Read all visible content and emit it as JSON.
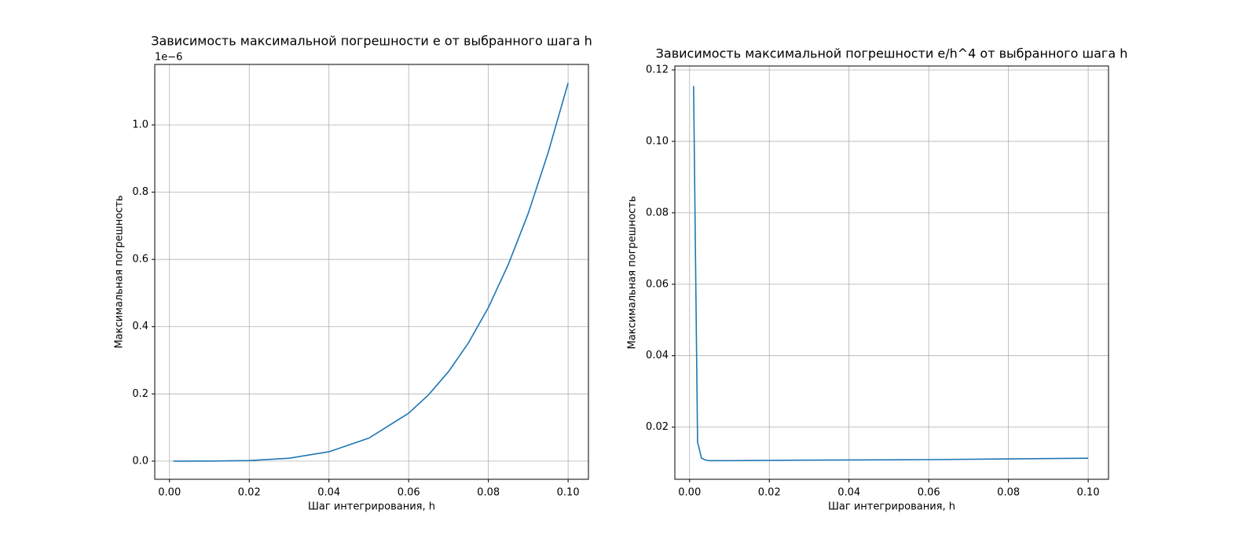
{
  "chart_data": [
    {
      "type": "line",
      "title": "Зависимость максимальной погрешности e от выбранного шага h",
      "xlabel": "Шаг интегрирования, h",
      "ylabel": "Максимальная погрешность",
      "offset_text": "1e−6",
      "x": [
        0.001,
        0.01,
        0.02,
        0.03,
        0.04,
        0.05,
        0.06,
        0.065,
        0.07,
        0.075,
        0.08,
        0.085,
        0.09,
        0.095,
        0.1
      ],
      "values": [
        0.0,
        0.0001,
        0.0017,
        0.0087,
        0.0279,
        0.0684,
        0.1426,
        0.1974,
        0.2663,
        0.352,
        0.457,
        0.585,
        0.737,
        0.918,
        1.125
      ],
      "color": "#1f77b4",
      "xlim": [
        -0.0037,
        0.1051
      ],
      "ylim": [
        -0.054,
        1.18
      ],
      "xticks": [
        {
          "value": 0,
          "label": "0.00"
        },
        0.02,
        0.04,
        0.06,
        0.08,
        {
          "value": 0.1,
          "label": "0.10"
        }
      ],
      "yticks": [
        {
          "value": 0,
          "label": "0.0"
        },
        0.2,
        0.4,
        0.6,
        0.8,
        {
          "value": 1,
          "label": "1.0"
        }
      ],
      "grid": true
    },
    {
      "type": "line",
      "title": "Зависимость максимальной погрешности e/h^4 от выбранного шага h",
      "xlabel": "Шаг интегрирования, h",
      "ylabel": "Максимальная погрешность",
      "x": [
        0.001,
        0.002,
        0.003,
        0.004,
        0.005,
        0.007,
        0.01,
        0.02,
        0.04,
        0.06,
        0.08,
        0.1
      ],
      "values": [
        0.1155,
        0.0158,
        0.0113,
        0.0108,
        0.0106,
        0.0106,
        0.0106,
        0.0107,
        0.0108,
        0.0109,
        0.0111,
        0.0113
      ],
      "color": "#1f77b4",
      "xlim": [
        -0.0037,
        0.1051
      ],
      "ylim": [
        0.0054,
        0.1211
      ],
      "xticks": [
        {
          "value": 0,
          "label": "0.00"
        },
        0.02,
        0.04,
        0.06,
        0.08,
        {
          "value": 0.1,
          "label": "0.10"
        }
      ],
      "yticks": [
        0.02,
        0.04,
        0.06,
        0.08,
        {
          "value": 0.1,
          "label": "0.10"
        },
        0.12
      ],
      "grid": true
    }
  ]
}
